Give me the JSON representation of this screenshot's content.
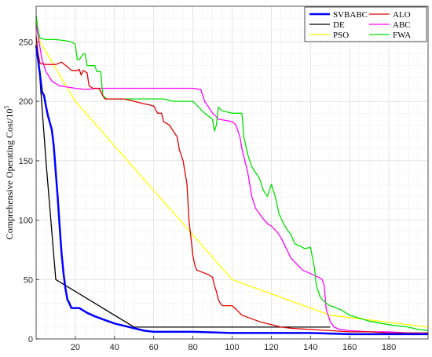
{
  "chart_data": {
    "type": "line",
    "title": "",
    "xlabel": "",
    "ylabel": "Comprehensive Operating Cost/10",
    "ylabel_exponent": "5",
    "xlim": [
      0,
      200
    ],
    "ylim": [
      0,
      280
    ],
    "xticks": [
      20,
      40,
      60,
      80,
      100,
      120,
      140,
      160,
      180
    ],
    "yticks": [
      0,
      50,
      100,
      150,
      200,
      250
    ],
    "grid": true,
    "legend_position": "top-right",
    "series": [
      {
        "name": "SVBABC",
        "color": "#0000ff",
        "width": 2.5,
        "points": [
          [
            0,
            247
          ],
          [
            1,
            235
          ],
          [
            2,
            222
          ],
          [
            3,
            208
          ],
          [
            4,
            205
          ],
          [
            5,
            196
          ],
          [
            6,
            188
          ],
          [
            7,
            182
          ],
          [
            8,
            176
          ],
          [
            9,
            162
          ],
          [
            10,
            140
          ],
          [
            11,
            120
          ],
          [
            12,
            95
          ],
          [
            13,
            72
          ],
          [
            14,
            55
          ],
          [
            15,
            42
          ],
          [
            16,
            33
          ],
          [
            17,
            30
          ],
          [
            18,
            26
          ],
          [
            22,
            26
          ],
          [
            26,
            22
          ],
          [
            30,
            19
          ],
          [
            35,
            16
          ],
          [
            40,
            13
          ],
          [
            45,
            11
          ],
          [
            50,
            9
          ],
          [
            55,
            7
          ],
          [
            60,
            6
          ],
          [
            65,
            6
          ],
          [
            80,
            6
          ],
          [
            100,
            5
          ],
          [
            120,
            5
          ],
          [
            140,
            5
          ],
          [
            160,
            4
          ],
          [
            180,
            4
          ],
          [
            190,
            4
          ],
          [
            200,
            4
          ]
        ]
      },
      {
        "name": "ALO",
        "color": "#e00000",
        "width": 1.3,
        "points": [
          [
            0,
            255
          ],
          [
            1,
            240
          ],
          [
            2,
            232
          ],
          [
            5,
            231
          ],
          [
            10,
            231
          ],
          [
            13,
            233
          ],
          [
            16,
            229
          ],
          [
            18,
            226
          ],
          [
            21,
            226
          ],
          [
            22,
            227
          ],
          [
            23,
            222
          ],
          [
            24,
            226
          ],
          [
            26,
            224
          ],
          [
            27,
            213
          ],
          [
            28,
            212
          ],
          [
            29,
            211
          ],
          [
            32,
            211
          ],
          [
            35,
            202
          ],
          [
            40,
            202
          ],
          [
            45,
            202
          ],
          [
            50,
            200
          ],
          [
            55,
            198
          ],
          [
            58,
            197
          ],
          [
            60,
            196
          ],
          [
            62,
            190
          ],
          [
            64,
            190
          ],
          [
            65,
            183
          ],
          [
            68,
            180
          ],
          [
            70,
            175
          ],
          [
            72,
            170
          ],
          [
            73,
            160
          ],
          [
            75,
            150
          ],
          [
            76,
            140
          ],
          [
            77,
            130
          ],
          [
            78,
            100
          ],
          [
            79,
            85
          ],
          [
            80,
            70
          ],
          [
            81,
            62
          ],
          [
            82,
            58
          ],
          [
            85,
            56
          ],
          [
            88,
            54
          ],
          [
            90,
            52
          ],
          [
            91,
            45
          ],
          [
            92,
            40
          ],
          [
            93,
            33
          ],
          [
            94,
            30
          ],
          [
            95,
            28
          ],
          [
            100,
            28
          ],
          [
            102,
            25
          ],
          [
            105,
            20
          ],
          [
            110,
            17
          ],
          [
            115,
            14
          ],
          [
            120,
            12
          ],
          [
            125,
            10
          ],
          [
            130,
            9
          ],
          [
            140,
            8
          ],
          [
            150,
            7
          ],
          [
            160,
            6
          ],
          [
            170,
            6
          ],
          [
            180,
            5
          ],
          [
            190,
            5
          ],
          [
            200,
            5
          ]
        ]
      },
      {
        "name": "DE",
        "color": "#000000",
        "width": 1.3,
        "points": [
          [
            0,
            245
          ],
          [
            1,
            240
          ],
          [
            5,
            150
          ],
          [
            8,
            90
          ],
          [
            10,
            50
          ],
          [
            50,
            10
          ],
          [
            100,
            10
          ],
          [
            150,
            10
          ]
        ]
      },
      {
        "name": "ABC",
        "color": "#ff00ff",
        "width": 1.3,
        "points": [
          [
            0,
            265
          ],
          [
            1,
            255
          ],
          [
            2,
            245
          ],
          [
            3,
            235
          ],
          [
            5,
            225
          ],
          [
            8,
            217
          ],
          [
            12,
            213
          ],
          [
            20,
            211
          ],
          [
            25,
            210
          ],
          [
            32,
            211
          ],
          [
            50,
            211
          ],
          [
            80,
            211
          ],
          [
            84,
            210
          ],
          [
            86,
            200
          ],
          [
            88,
            195
          ],
          [
            90,
            190
          ],
          [
            92,
            187
          ],
          [
            93,
            185
          ],
          [
            100,
            183
          ],
          [
            102,
            180
          ],
          [
            104,
            170
          ],
          [
            105,
            160
          ],
          [
            108,
            140
          ],
          [
            110,
            120
          ],
          [
            112,
            110
          ],
          [
            115,
            103
          ],
          [
            118,
            97
          ],
          [
            120,
            95
          ],
          [
            123,
            90
          ],
          [
            125,
            85
          ],
          [
            128,
            75
          ],
          [
            130,
            68
          ],
          [
            133,
            63
          ],
          [
            136,
            58
          ],
          [
            140,
            55
          ],
          [
            144,
            52
          ],
          [
            146,
            50
          ],
          [
            147,
            45
          ],
          [
            148,
            25
          ],
          [
            150,
            15
          ],
          [
            152,
            10
          ],
          [
            155,
            8
          ],
          [
            160,
            7
          ],
          [
            170,
            6
          ],
          [
            180,
            6
          ],
          [
            190,
            5
          ],
          [
            200,
            5
          ]
        ]
      },
      {
        "name": "PSO",
        "color": "#ffff00",
        "width": 1.3,
        "points": [
          [
            0,
            268
          ],
          [
            2,
            250
          ],
          [
            20,
            200
          ],
          [
            100,
            50
          ],
          [
            150,
            20
          ],
          [
            200,
            10
          ]
        ]
      },
      {
        "name": "FWA",
        "color": "#00e000",
        "width": 1.3,
        "points": [
          [
            0,
            272
          ],
          [
            1,
            260
          ],
          [
            2,
            253
          ],
          [
            5,
            252
          ],
          [
            10,
            252
          ],
          [
            15,
            251
          ],
          [
            18,
            250
          ],
          [
            20,
            248
          ],
          [
            21,
            235
          ],
          [
            22,
            235
          ],
          [
            24,
            240
          ],
          [
            25,
            240
          ],
          [
            26,
            230
          ],
          [
            30,
            230
          ],
          [
            31,
            225
          ],
          [
            33,
            225
          ],
          [
            34,
            205
          ],
          [
            36,
            202
          ],
          [
            45,
            202
          ],
          [
            55,
            202
          ],
          [
            65,
            202
          ],
          [
            70,
            200
          ],
          [
            75,
            200
          ],
          [
            80,
            200
          ],
          [
            86,
            190
          ],
          [
            90,
            185
          ],
          [
            91,
            175
          ],
          [
            92,
            180
          ],
          [
            93,
            195
          ],
          [
            95,
            192
          ],
          [
            100,
            190
          ],
          [
            105,
            190
          ],
          [
            106,
            170
          ],
          [
            108,
            155
          ],
          [
            110,
            145
          ],
          [
            112,
            140
          ],
          [
            114,
            135
          ],
          [
            116,
            125
          ],
          [
            118,
            120
          ],
          [
            120,
            130
          ],
          [
            122,
            120
          ],
          [
            124,
            105
          ],
          [
            126,
            98
          ],
          [
            128,
            92
          ],
          [
            130,
            88
          ],
          [
            132,
            80
          ],
          [
            135,
            78
          ],
          [
            137,
            76
          ],
          [
            140,
            77
          ],
          [
            142,
            60
          ],
          [
            143,
            45
          ],
          [
            145,
            35
          ],
          [
            148,
            30
          ],
          [
            150,
            28
          ],
          [
            155,
            25
          ],
          [
            160,
            20
          ],
          [
            170,
            15
          ],
          [
            180,
            12
          ],
          [
            190,
            10
          ],
          [
            195,
            8
          ],
          [
            200,
            7
          ]
        ]
      }
    ]
  }
}
